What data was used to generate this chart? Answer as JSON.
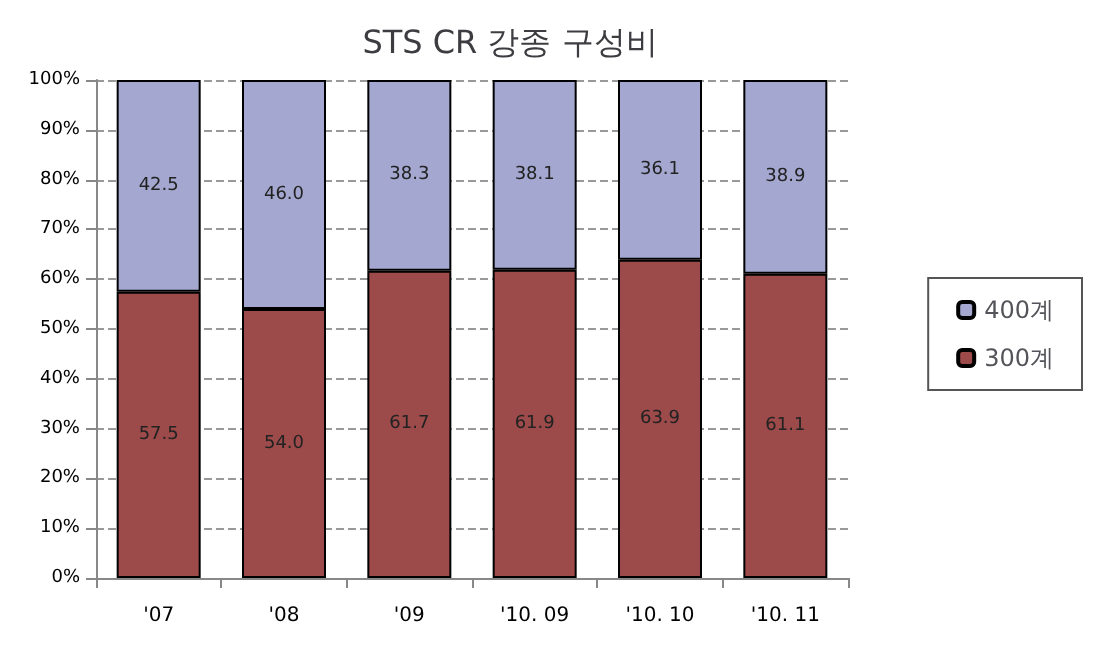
{
  "chart_data": {
    "type": "bar",
    "title": "STS CR 강종 구성비",
    "stacked": true,
    "categories": [
      "'07",
      "'08",
      "'09",
      "'10. 09",
      "'10. 10",
      "'10. 11"
    ],
    "series": [
      {
        "name": "300계",
        "color": "#9c4a4a",
        "values": [
          57.5,
          54.0,
          61.7,
          61.9,
          63.9,
          61.1
        ],
        "value_labels": [
          "57.5",
          "54.0",
          "61.7",
          "61.9",
          "63.9",
          "61.1"
        ]
      },
      {
        "name": "400계",
        "color": "#a4a8d0",
        "values": [
          42.5,
          46.0,
          38.3,
          38.1,
          36.1,
          38.9
        ],
        "value_labels": [
          "42.5",
          "46.0",
          "38.3",
          "38.1",
          "36.1",
          "38.9"
        ]
      }
    ],
    "ylim": [
      0,
      100
    ],
    "yticks": [
      {
        "value": 0,
        "label": "0%"
      },
      {
        "value": 10,
        "label": "10%"
      },
      {
        "value": 20,
        "label": "20%"
      },
      {
        "value": 30,
        "label": "30%"
      },
      {
        "value": 40,
        "label": "40%"
      },
      {
        "value": 50,
        "label": "50%"
      },
      {
        "value": 60,
        "label": "60%"
      },
      {
        "value": 70,
        "label": "70%"
      },
      {
        "value": 80,
        "label": "80%"
      },
      {
        "value": 90,
        "label": "90%"
      },
      {
        "value": 100,
        "label": "100%"
      }
    ],
    "grid": "y",
    "legend": "right"
  }
}
